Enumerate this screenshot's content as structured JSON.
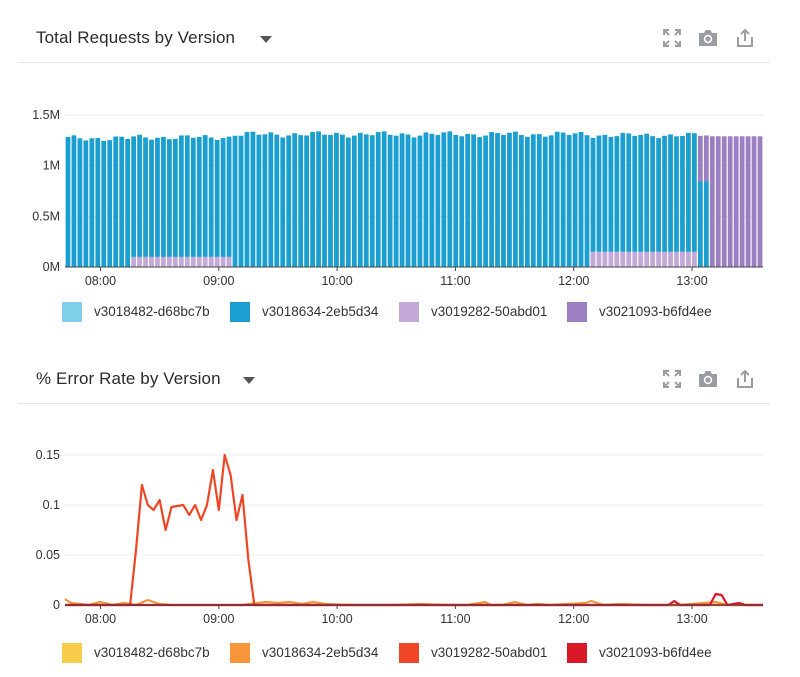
{
  "panels": [
    {
      "title": "Total Requests by Version",
      "icons": [
        "expand-icon",
        "camera-icon",
        "share-icon"
      ]
    },
    {
      "title": "% Error Rate by Version",
      "icons": [
        "expand-icon",
        "camera-icon",
        "share-icon"
      ]
    }
  ],
  "chart_data": [
    {
      "type": "bar",
      "stacked": true,
      "title": "Total Requests by Version",
      "x_ticks": [
        "08:00",
        "09:00",
        "10:00",
        "11:00",
        "12:00",
        "13:00"
      ],
      "y_ticks": [
        "1.5M",
        "1M",
        "0.5M",
        "0M"
      ],
      "ylim": [
        0,
        1500000
      ],
      "grid": true,
      "legend_position": "bottom",
      "x_start": "07:42",
      "x_step_min": 6,
      "bar_count": 117,
      "series": [
        {
          "name": "v3018482-d68bc7b",
          "color": "#7fcfe9",
          "values_note": "0 throughout"
        },
        {
          "name": "v3018634-2eb5d34",
          "color": "#1b9fd0"
        },
        {
          "name": "v3019282-50abd01",
          "color": "#c3a9d8"
        },
        {
          "name": "v3021093-b6fd4ee",
          "color": "#9b7fc0"
        }
      ],
      "totals_approx": 1300000,
      "segments": [
        {
          "from": "07:42",
          "to": "08:15",
          "v3018634-2eb5d34": 1270000
        },
        {
          "from": "08:15",
          "to": "09:06",
          "v3018634-2eb5d34": 1180000,
          "v3019282-50abd01": 100000
        },
        {
          "from": "09:06",
          "to": "12:09",
          "v3018634-2eb5d34": 1310000
        },
        {
          "from": "12:09",
          "to": "13:03",
          "v3018634-2eb5d34": 1150000,
          "v3019282-50abd01": 150000
        },
        {
          "from": "13:03",
          "to": "13:09",
          "v3018634-2eb5d34": 850000,
          "v3021093-b6fd4ee": 450000
        },
        {
          "from": "13:09",
          "to": "13:36",
          "v3021093-b6fd4ee": 1290000
        }
      ]
    },
    {
      "type": "line",
      "title": "% Error Rate by Version",
      "x_ticks": [
        "08:00",
        "09:00",
        "10:00",
        "11:00",
        "12:00",
        "13:00"
      ],
      "y_ticks": [
        "0.15",
        "0.1",
        "0.05",
        "0"
      ],
      "ylim": [
        0,
        0.15
      ],
      "grid": true,
      "legend_position": "bottom",
      "series": [
        {
          "name": "v3018482-d68bc7b",
          "color": "#f9cd4a",
          "values": []
        },
        {
          "name": "v3018634-2eb5d34",
          "color": "#f7953a",
          "points": [
            [
              "07:42",
              0.006
            ],
            [
              "07:45",
              0.002
            ],
            [
              "07:54",
              0.0
            ],
            [
              "08:00",
              0.003
            ],
            [
              "08:06",
              0.0
            ],
            [
              "08:12",
              0.002
            ],
            [
              "08:18",
              0.0
            ],
            [
              "08:24",
              0.005
            ],
            [
              "08:30",
              0.001
            ],
            [
              "08:36",
              0.0
            ],
            [
              "09:00",
              0.0
            ],
            [
              "09:12",
              0.0
            ],
            [
              "09:24",
              0.003
            ],
            [
              "09:30",
              0.002
            ],
            [
              "09:36",
              0.003
            ],
            [
              "09:42",
              0.001
            ],
            [
              "09:48",
              0.003
            ],
            [
              "09:54",
              0.001
            ],
            [
              "10:06",
              0.0
            ],
            [
              "10:30",
              0.0
            ],
            [
              "10:42",
              0.001
            ],
            [
              "10:54",
              0.0
            ],
            [
              "11:06",
              0.0
            ],
            [
              "11:12",
              0.002
            ],
            [
              "11:15",
              0.003
            ],
            [
              "11:18",
              0.0
            ],
            [
              "11:24",
              0.0
            ],
            [
              "11:30",
              0.003
            ],
            [
              "11:36",
              0.0
            ],
            [
              "11:42",
              0.001
            ],
            [
              "11:48",
              0.0
            ],
            [
              "12:06",
              0.002
            ],
            [
              "12:09",
              0.004
            ],
            [
              "12:15",
              0.0
            ],
            [
              "12:24",
              0.001
            ],
            [
              "12:36",
              0.0
            ],
            [
              "12:54",
              0.0
            ],
            [
              "13:00",
              0.001
            ],
            [
              "13:12",
              0.003
            ],
            [
              "13:18",
              0.0
            ],
            [
              "13:36",
              0.0
            ]
          ]
        },
        {
          "name": "v3019282-50abd01",
          "color": "#ee4624",
          "points": [
            [
              "07:42",
              0.0
            ],
            [
              "08:12",
              0.0
            ],
            [
              "08:15",
              0.0
            ],
            [
              "08:18",
              0.055
            ],
            [
              "08:21",
              0.12
            ],
            [
              "08:24",
              0.1
            ],
            [
              "08:27",
              0.095
            ],
            [
              "08:30",
              0.105
            ],
            [
              "08:33",
              0.075
            ],
            [
              "08:36",
              0.098
            ],
            [
              "08:42",
              0.1
            ],
            [
              "08:45",
              0.09
            ],
            [
              "08:48",
              0.1
            ],
            [
              "08:51",
              0.085
            ],
            [
              "08:54",
              0.1
            ],
            [
              "08:57",
              0.135
            ],
            [
              "09:00",
              0.095
            ],
            [
              "09:03",
              0.15
            ],
            [
              "09:06",
              0.13
            ],
            [
              "09:09",
              0.085
            ],
            [
              "09:12",
              0.11
            ],
            [
              "09:15",
              0.045
            ],
            [
              "09:18",
              0.0
            ],
            [
              "09:36",
              0.0
            ],
            [
              "12:00",
              0.0
            ],
            [
              "12:09",
              0.0
            ],
            [
              "13:36",
              0.0
            ]
          ]
        },
        {
          "name": "v3021093-b6fd4ee",
          "color": "#d91828",
          "points": [
            [
              "07:42",
              0.0
            ],
            [
              "12:48",
              0.0
            ],
            [
              "12:51",
              0.004
            ],
            [
              "12:54",
              0.0
            ],
            [
              "13:09",
              0.0
            ],
            [
              "13:12",
              0.011
            ],
            [
              "13:15",
              0.01
            ],
            [
              "13:18",
              0.0
            ],
            [
              "13:24",
              0.002
            ],
            [
              "13:27",
              0.0
            ],
            [
              "13:36",
              0.0
            ]
          ]
        }
      ]
    }
  ]
}
